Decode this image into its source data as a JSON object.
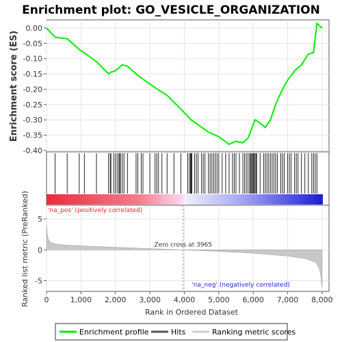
{
  "chart_data": {
    "type": "line",
    "title": "Enrichment plot: GO_VESICLE_ORGANIZATION",
    "es_panel": {
      "ylabel": "Enrichment score (ES)",
      "ylim": [
        -0.4,
        0.02
      ],
      "yticks": [
        "0.00",
        "-0.05",
        "-0.10",
        "-0.15",
        "-0.20",
        "-0.25",
        "-0.30",
        "-0.35",
        "-0.40"
      ],
      "ytick_values": [
        0.0,
        -0.05,
        -0.1,
        -0.15,
        -0.2,
        -0.25,
        -0.3,
        -0.35,
        -0.4
      ],
      "series": [
        {
          "name": "Enrichment profile",
          "color": "#00ee00",
          "x": [
            0,
            250,
            600,
            950,
            1150,
            1450,
            1800,
            1850,
            2000,
            2100,
            2200,
            2350,
            2500,
            2650,
            2900,
            3150,
            3500,
            3900,
            4200,
            4700,
            5000,
            5300,
            5500,
            5700,
            5850,
            5950,
            6050,
            6200,
            6350,
            6500,
            6650,
            6850,
            7000,
            7200,
            7400,
            7600,
            7750,
            7850,
            8000
          ],
          "y": [
            0.0,
            -0.03,
            -0.035,
            -0.07,
            -0.085,
            -0.11,
            -0.15,
            -0.145,
            -0.14,
            -0.13,
            -0.12,
            -0.125,
            -0.14,
            -0.155,
            -0.175,
            -0.195,
            -0.22,
            -0.265,
            -0.3,
            -0.34,
            -0.355,
            -0.38,
            -0.37,
            -0.375,
            -0.36,
            -0.33,
            -0.3,
            -0.31,
            -0.325,
            -0.3,
            -0.25,
            -0.2,
            -0.17,
            -0.14,
            -0.12,
            -0.085,
            -0.08,
            0.015,
            0.0
          ]
        }
      ]
    },
    "hits_panel": {
      "legend_name": "Hits",
      "positions": [
        250,
        600,
        950,
        1100,
        1450,
        1800,
        1850,
        1870,
        1950,
        2000,
        2050,
        2100,
        2120,
        2150,
        2200,
        2250,
        2350,
        2600,
        2650,
        2750,
        2800,
        3000,
        3150,
        3200,
        3250,
        3350,
        3500,
        3700,
        3900,
        4100,
        4150,
        4180,
        4200,
        4220,
        4300,
        4350,
        4400,
        4500,
        4550,
        4600,
        4700,
        4750,
        4800,
        4850,
        4900,
        4950,
        5000,
        5100,
        5200,
        5300,
        5400,
        5450,
        5500,
        5600,
        5700,
        5750,
        5800,
        5850,
        5900,
        5920,
        5950,
        5980,
        6000,
        6020,
        6050,
        6080,
        6100,
        6200,
        6300,
        6350,
        6400,
        6450,
        6500,
        6550,
        6600,
        6650,
        6700,
        6800,
        6850,
        6900,
        7000,
        7050,
        7100,
        7200,
        7250,
        7300,
        7400,
        7500,
        7600,
        7700,
        7750,
        7800,
        7850
      ]
    },
    "metric_panel": {
      "legend_name": "Ranking metric scores",
      "ylabel": "Ranked list metric (PreRanked)",
      "ylim": [
        -6.5,
        7
      ],
      "yticks": [
        "5",
        "0",
        "-5"
      ],
      "ytick_values": [
        5,
        0,
        -5
      ],
      "curve_x": [
        0,
        20,
        60,
        150,
        300,
        600,
        1000,
        2000,
        3000,
        3965,
        5000,
        6000,
        7000,
        7500,
        7800,
        7900,
        7950,
        8000
      ],
      "curve_y": [
        4.0,
        2.5,
        1.6,
        1.1,
        0.9,
        0.75,
        0.65,
        0.4,
        0.2,
        0.0,
        -0.25,
        -0.55,
        -1.0,
        -1.4,
        -2.0,
        -2.8,
        -3.8,
        -6.0
      ],
      "pos_label": "'na_pos' (positively correlated)",
      "neg_label": "'na_neg' (negatively correlated)",
      "zero_cross_label": "Zero cross at 3965",
      "zero_cross": 3965,
      "pos_color": "#ee2222",
      "neg_color": "#2222ee"
    },
    "xlabel": "Rank in Ordered Dataset",
    "xlim": [
      0,
      8200
    ],
    "xticks": [
      "0",
      "1,000",
      "2,000",
      "3,000",
      "4,000",
      "5,000",
      "6,000",
      "7,000",
      "8,000"
    ],
    "xtick_values": [
      0,
      1000,
      2000,
      3000,
      4000,
      5000,
      6000,
      7000,
      8000
    ],
    "legend": {
      "placement": "bottom",
      "items": [
        {
          "label": "Enrichment profile",
          "color": "#00ee00"
        },
        {
          "label": "Hits",
          "color": "#555555"
        },
        {
          "label": "Ranking metric scores",
          "color": "#cccccc"
        }
      ]
    }
  }
}
